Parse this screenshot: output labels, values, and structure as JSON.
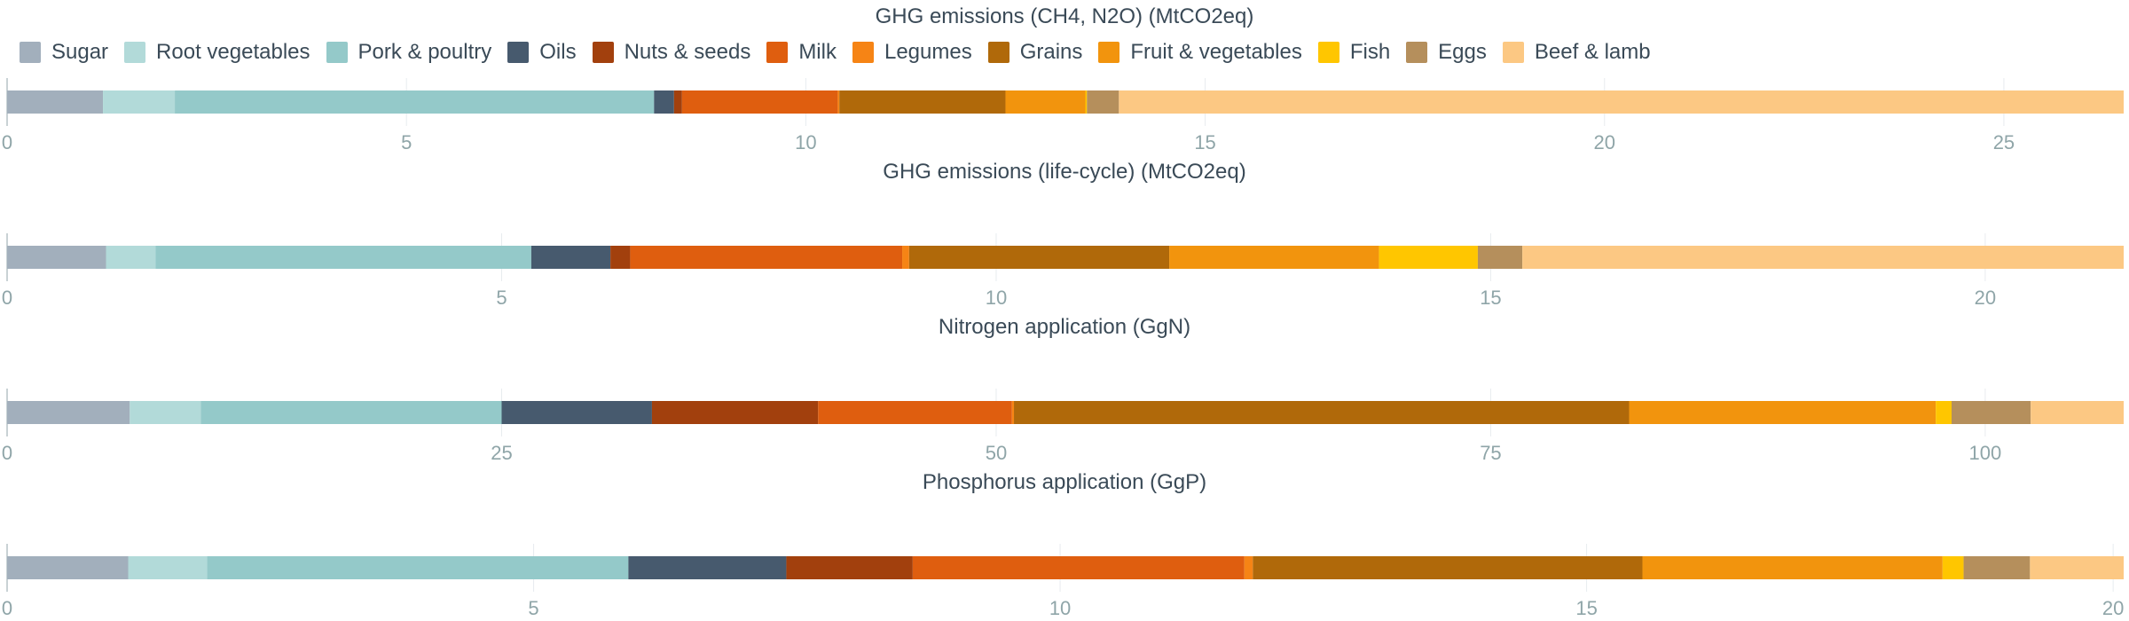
{
  "legend": [
    {
      "name": "Sugar",
      "color": "#a2afbc"
    },
    {
      "name": "Root vegetables",
      "color": "#b2dad9"
    },
    {
      "name": "Pork & poultry",
      "color": "#94c9c9"
    },
    {
      "name": "Oils",
      "color": "#475a6e"
    },
    {
      "name": "Nuts & seeds",
      "color": "#a2400d"
    },
    {
      "name": "Milk",
      "color": "#df5e0f"
    },
    {
      "name": "Legumes",
      "color": "#f68415"
    },
    {
      "name": "Grains",
      "color": "#b0690a"
    },
    {
      "name": "Fruit & vegetables",
      "color": "#f2940d"
    },
    {
      "name": "Fish",
      "color": "#ffc600"
    },
    {
      "name": "Eggs",
      "color": "#b58f5c"
    },
    {
      "name": "Beef & lamb",
      "color": "#fcc883"
    }
  ],
  "chart_data": [
    {
      "type": "bar",
      "orientation": "horizontal-stacked",
      "title": "GHG emissions (CH4, N2O) (MtCO2eq)",
      "xlim": [
        0,
        26.5
      ],
      "ticks": [
        0,
        5,
        10,
        15,
        20,
        25
      ],
      "tick_labels": [
        "0",
        "5",
        "10",
        "15",
        "20",
        "25"
      ],
      "categories": [
        "Sugar",
        "Root vegetables",
        "Pork & poultry",
        "Oils",
        "Nuts & seeds",
        "Milk",
        "Legumes",
        "Grains",
        "Fruit & vegetables",
        "Fish",
        "Eggs",
        "Beef & lamb"
      ],
      "values": [
        1.2,
        0.9,
        6.0,
        0.25,
        0.1,
        1.95,
        0.02,
        2.08,
        1.0,
        0.02,
        0.4,
        12.58
      ]
    },
    {
      "type": "bar",
      "orientation": "horizontal-stacked",
      "title": "GHG emissions (life-cycle) (MtCO2eq)",
      "xlim": [
        0,
        21.4
      ],
      "ticks": [
        0,
        5,
        10,
        15,
        20
      ],
      "tick_labels": [
        "0",
        "5",
        "10",
        "15",
        "20"
      ],
      "categories": [
        "Sugar",
        "Root vegetables",
        "Pork & poultry",
        "Oils",
        "Nuts & seeds",
        "Milk",
        "Legumes",
        "Grains",
        "Fruit & vegetables",
        "Fish",
        "Eggs",
        "Beef & lamb"
      ],
      "values": [
        1.0,
        0.5,
        3.8,
        0.8,
        0.2,
        2.75,
        0.07,
        2.63,
        2.12,
        1.0,
        0.45,
        6.08
      ]
    },
    {
      "type": "bar",
      "orientation": "horizontal-stacked",
      "title": "Nitrogen application (GgN)",
      "xlim": [
        0,
        107
      ],
      "ticks": [
        0,
        25,
        50,
        75,
        100
      ],
      "tick_labels": [
        "0",
        "25",
        "50",
        "75",
        "100"
      ],
      "categories": [
        "Sugar",
        "Root vegetables",
        "Pork & poultry",
        "Oils",
        "Nuts & seeds",
        "Milk",
        "Legumes",
        "Grains",
        "Fruit & vegetables",
        "Fish",
        "Eggs",
        "Beef & lamb"
      ],
      "values": [
        6.2,
        3.6,
        15.2,
        7.6,
        8.4,
        9.8,
        0.1,
        31.1,
        15.5,
        0.8,
        4.0,
        4.7
      ]
    },
    {
      "type": "bar",
      "orientation": "horizontal-stacked",
      "title": "Phosphorus application (GgP)",
      "xlim": [
        0,
        20.1
      ],
      "ticks": [
        0,
        5,
        10,
        15,
        20
      ],
      "tick_labels": [
        "0",
        "5",
        "10",
        "15",
        "20"
      ],
      "categories": [
        "Sugar",
        "Root vegetables",
        "Pork & poultry",
        "Oils",
        "Nuts & seeds",
        "Milk",
        "Legumes",
        "Grains",
        "Fruit & vegetables",
        "Fish",
        "Eggs",
        "Beef & lamb"
      ],
      "values": [
        1.15,
        0.75,
        4.0,
        1.5,
        1.2,
        3.15,
        0.08,
        3.7,
        2.85,
        0.2,
        0.63,
        0.89
      ]
    }
  ]
}
